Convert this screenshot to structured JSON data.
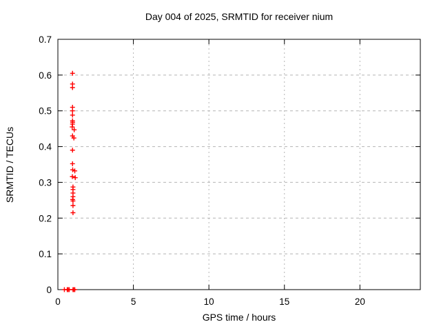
{
  "chart_data": {
    "type": "scatter",
    "title": "Day 004 of 2025, SRMTID for receiver nium",
    "xlabel": "GPS time / hours",
    "ylabel": "SRMTID / TECUs",
    "xlim": [
      0,
      24
    ],
    "ylim": [
      0,
      0.7
    ],
    "xticks": [
      {
        "v": 0,
        "label": "0"
      },
      {
        "v": 5,
        "label": "5"
      },
      {
        "v": 10,
        "label": "10"
      },
      {
        "v": 15,
        "label": "15"
      },
      {
        "v": 20,
        "label": "20"
      }
    ],
    "yticks": [
      {
        "v": 0,
        "label": "0"
      },
      {
        "v": 0.1,
        "label": "0.1"
      },
      {
        "v": 0.2,
        "label": "0.2"
      },
      {
        "v": 0.3,
        "label": "0.3"
      },
      {
        "v": 0.4,
        "label": "0.4"
      },
      {
        "v": 0.5,
        "label": "0.5"
      },
      {
        "v": 0.6,
        "label": "0.6"
      },
      {
        "v": 0.7,
        "label": "0.7"
      }
    ],
    "grid": true,
    "legend_position": "none",
    "marker": "plus",
    "colors": {
      "marker": "#ff0000",
      "axis": "#000000",
      "grid": "#b4b4b4",
      "text": "#000000",
      "background": "#ffffff"
    },
    "series": [
      {
        "name": "SRMTID",
        "points": [
          [
            0.97,
            0.605
          ],
          [
            0.97,
            0.575
          ],
          [
            0.97,
            0.565
          ],
          [
            0.97,
            0.51
          ],
          [
            0.97,
            0.5
          ],
          [
            0.97,
            0.488
          ],
          [
            0.97,
            0.472
          ],
          [
            0.98,
            0.468
          ],
          [
            0.97,
            0.463
          ],
          [
            0.95,
            0.455
          ],
          [
            1.08,
            0.447
          ],
          [
            0.97,
            0.43
          ],
          [
            1.06,
            0.424
          ],
          [
            0.97,
            0.39
          ],
          [
            0.97,
            0.352
          ],
          [
            0.98,
            0.335
          ],
          [
            1.12,
            0.332
          ],
          [
            0.96,
            0.316
          ],
          [
            1.15,
            0.313
          ],
          [
            1.0,
            0.287
          ],
          [
            1.0,
            0.28
          ],
          [
            1.0,
            0.27
          ],
          [
            1.0,
            0.26
          ],
          [
            0.98,
            0.252
          ],
          [
            1.0,
            0.248
          ],
          [
            1.0,
            0.235
          ],
          [
            1.0,
            0.215
          ],
          [
            0.43,
            0.0
          ],
          [
            0.62,
            0.0
          ],
          [
            0.68,
            0.0
          ],
          [
            0.75,
            0.0
          ],
          [
            1.0,
            0.0
          ],
          [
            1.05,
            0.0
          ],
          [
            1.12,
            0.0
          ]
        ]
      }
    ]
  }
}
